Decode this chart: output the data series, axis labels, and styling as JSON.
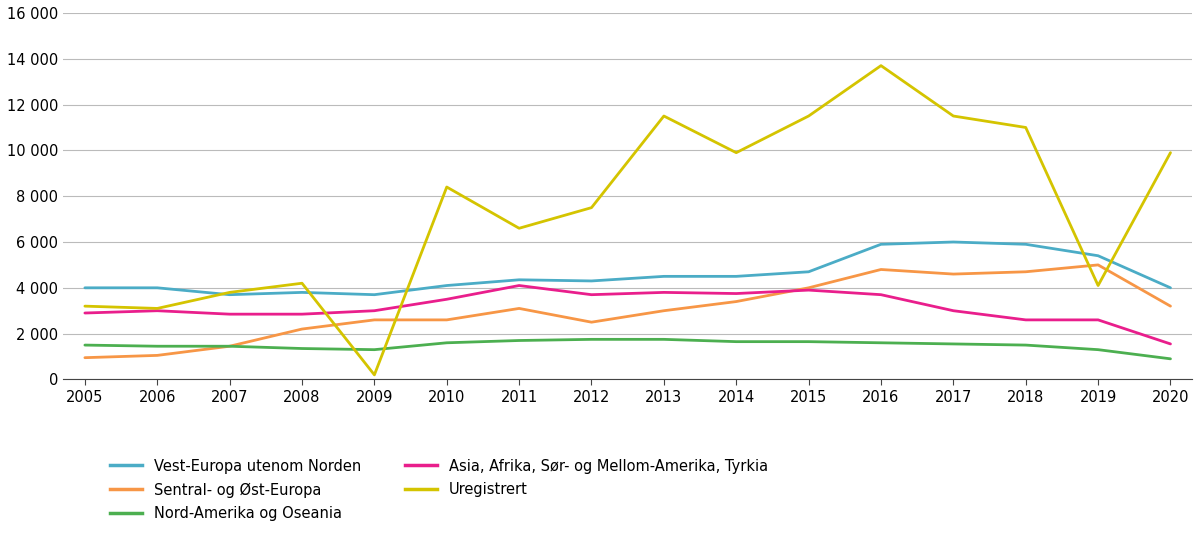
{
  "years": [
    2005,
    2006,
    2007,
    2008,
    2009,
    2010,
    2011,
    2012,
    2013,
    2014,
    2015,
    2016,
    2017,
    2018,
    2019,
    2020
  ],
  "series": {
    "Vest-Europa utenom Norden": {
      "values": [
        4000,
        4000,
        3700,
        3800,
        3700,
        4100,
        4350,
        4300,
        4500,
        4500,
        4700,
        5900,
        6000,
        5900,
        5400,
        4000
      ],
      "color": "#4BACC6"
    },
    "Sentral- og Øst-Europa": {
      "values": [
        950,
        1050,
        1450,
        2200,
        2600,
        2600,
        3100,
        2500,
        3000,
        3400,
        4000,
        4800,
        4600,
        4700,
        5000,
        3200
      ],
      "color": "#F79646"
    },
    "Nord-Amerika og Oseania": {
      "values": [
        1500,
        1450,
        1450,
        1350,
        1300,
        1600,
        1700,
        1750,
        1750,
        1650,
        1650,
        1600,
        1550,
        1500,
        1300,
        900
      ],
      "color": "#4CAF50"
    },
    "Asia, Afrika, Sør- og Mellom-Amerika, Tyrkia": {
      "values": [
        2900,
        3000,
        2850,
        2850,
        3000,
        3500,
        4100,
        3700,
        3800,
        3750,
        3900,
        3700,
        3000,
        2600,
        2600,
        1550
      ],
      "color": "#E91E8C"
    },
    "Uregistrert": {
      "values": [
        3200,
        3100,
        3800,
        4200,
        200,
        8400,
        6600,
        7500,
        11500,
        9900,
        11500,
        13700,
        11500,
        11000,
        4100,
        9900
      ],
      "color": "#D4C400"
    }
  },
  "ylim": [
    0,
    16000
  ],
  "yticks": [
    0,
    2000,
    4000,
    6000,
    8000,
    10000,
    12000,
    14000,
    16000
  ],
  "background_color": "#FFFFFF",
  "grid_color": "#BBBBBB",
  "legend_col1": [
    "Vest-Europa utenom Norden",
    "Nord-Amerika og Oseania",
    "Uregistrert"
  ],
  "legend_col2": [
    "Sentral- og Øst-Europa",
    "Asia, Afrika, Sør- og Mellom-Amerika, Tyrkia"
  ]
}
